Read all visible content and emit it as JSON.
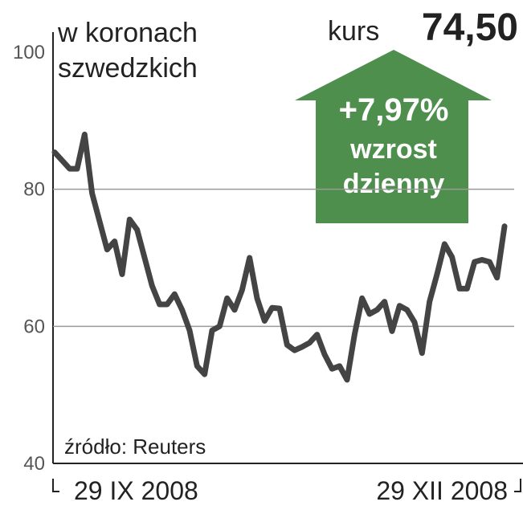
{
  "chart_data": {
    "type": "line",
    "title": [
      "w koronach",
      "szwedzkich"
    ],
    "price_label": "kurs",
    "price": "74,50",
    "change": "+7,97%",
    "change_caption": [
      "wzrost",
      "dzienny"
    ],
    "source": "źródło: Reuters",
    "categories": [
      "29 IX 2008",
      null,
      null,
      null,
      null,
      null,
      null,
      null,
      null,
      null,
      null,
      null,
      null,
      null,
      null,
      null,
      null,
      null,
      null,
      null,
      null,
      null,
      null,
      null,
      null,
      null,
      null,
      null,
      null,
      null,
      null,
      null,
      null,
      null,
      null,
      null,
      null,
      null,
      null,
      null,
      null,
      null,
      null,
      null,
      null,
      null,
      null,
      null,
      null,
      null,
      null,
      null,
      null,
      null,
      null,
      null,
      null,
      null,
      null,
      null,
      "29 XII 2008"
    ],
    "series": [
      {
        "name": "kurs",
        "color": "#444444",
        "values": [
          85.4,
          84.2,
          83,
          83,
          88,
          79.4,
          75.3,
          71.2,
          72.4,
          67.6,
          75.6,
          74.1,
          70,
          65.9,
          63.2,
          63.2,
          64.7,
          62.4,
          59.4,
          54.2,
          53,
          59.4,
          60,
          64.1,
          62.4,
          65.3,
          70,
          64.1,
          60.8,
          62.7,
          62.6,
          57.3,
          56.5,
          57,
          57.6,
          58.8,
          55.9,
          53.8,
          54.2,
          52.2,
          58.8,
          64.1,
          61.8,
          62.4,
          63.6,
          59.3,
          63,
          62.4,
          60.6,
          56.1,
          63.6,
          67.6,
          72,
          70.1,
          65.5,
          65.5,
          69.4,
          69.7,
          69.4,
          67.1,
          74.6
        ]
      }
    ],
    "ylim": [
      40,
      100
    ],
    "yticks": [
      40,
      60,
      80,
      100
    ],
    "grid": true,
    "arrow_color": "#4e8f4e"
  }
}
